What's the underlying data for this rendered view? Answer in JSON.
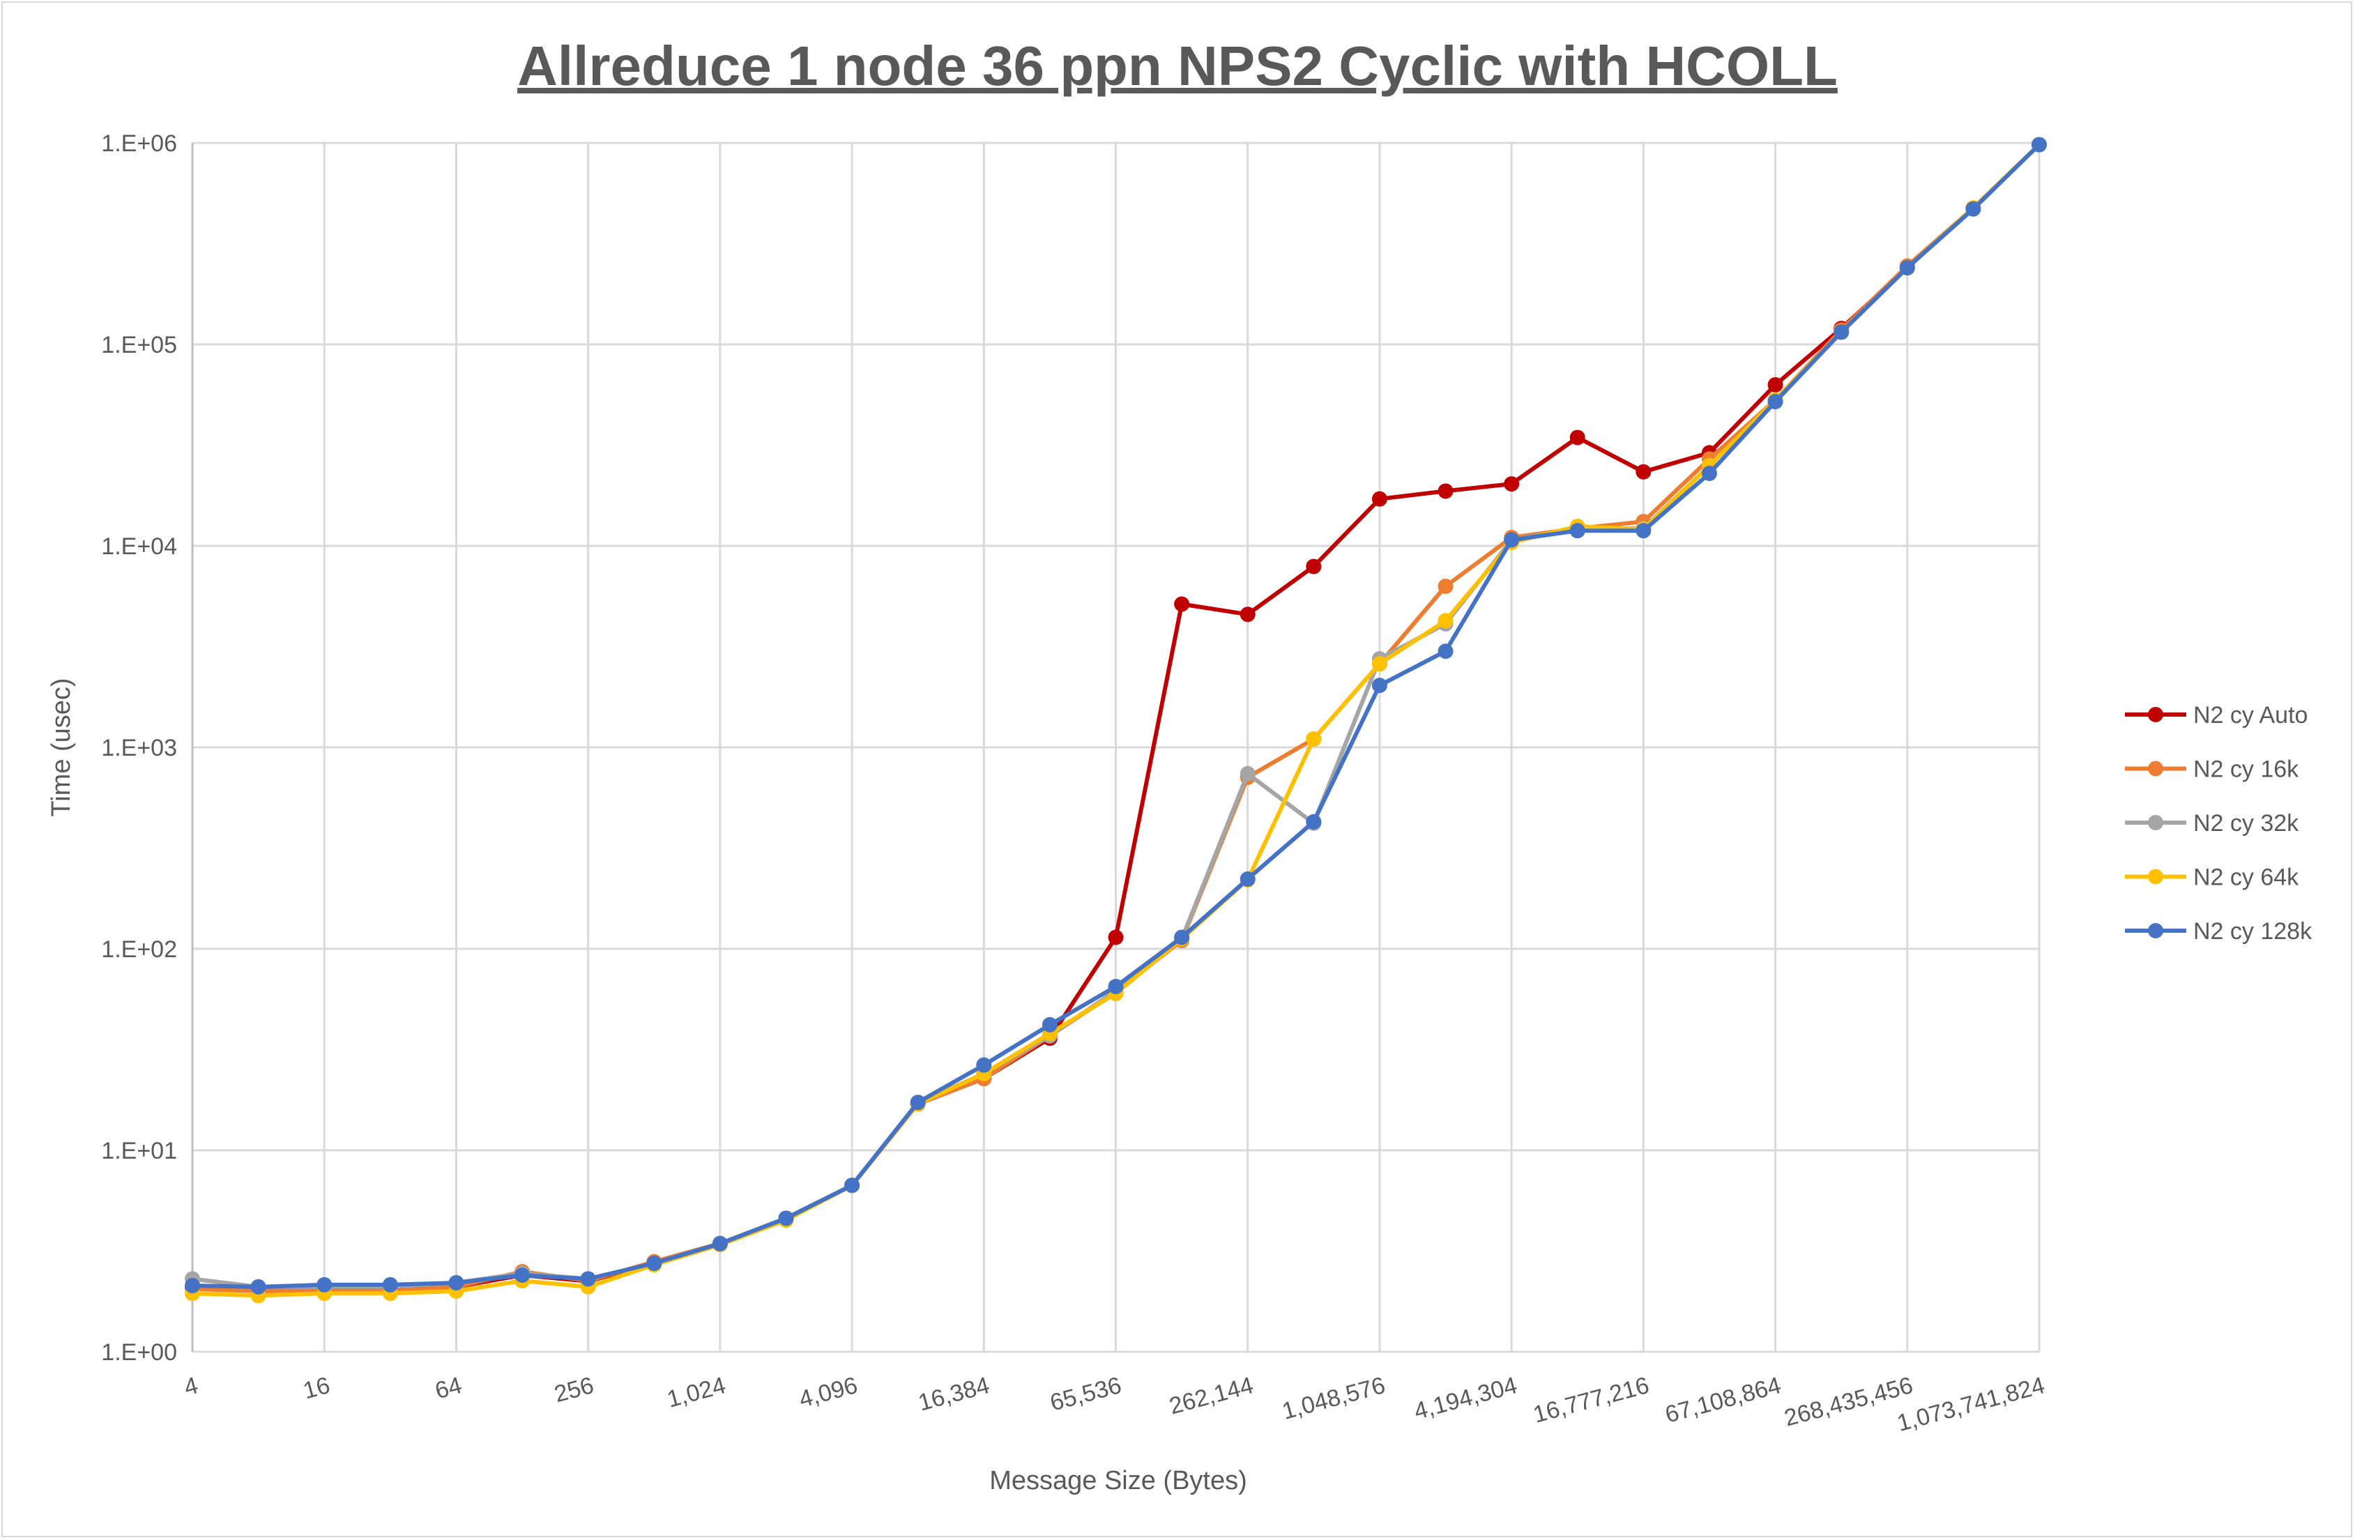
{
  "chart_data": {
    "type": "line",
    "title": "Allreduce 1 node 36 ppn NPS2 Cyclic with HCOLL",
    "xlabel": "Message Size (Bytes)",
    "ylabel": "Time (usec)",
    "x_scale": "log2",
    "y_scale": "log10",
    "ylim": [
      1,
      1000000
    ],
    "grid": true,
    "legend_position": "right",
    "x": [
      4,
      8,
      16,
      32,
      64,
      128,
      256,
      512,
      1024,
      2048,
      4096,
      8192,
      16384,
      32768,
      65536,
      131072,
      262144,
      524288,
      1048576,
      2097152,
      4194304,
      8388608,
      16777216,
      33554432,
      67108864,
      134217728,
      268435456,
      536870912,
      1073741824
    ],
    "x_tick_labels": [
      "4",
      "16",
      "64",
      "256",
      "1,024",
      "4,096",
      "16,384",
      "65,536",
      "262,144",
      "1,048,576",
      "4,194,304",
      "16,777,216",
      "67,108,864",
      "268,435,456",
      "1,073,741,824"
    ],
    "y_tick_labels": [
      "1.E+00",
      "1.E+01",
      "1.E+02",
      "1.E+03",
      "1.E+04",
      "1.E+05",
      "1.E+06"
    ],
    "series": [
      {
        "name": "N2 cy Auto",
        "color": "#C00000",
        "values": [
          2.09,
          2.0,
          2.05,
          2.05,
          2.1,
          2.4,
          2.24,
          2.75,
          3.44,
          4.53,
          6.7,
          17.0,
          22.7,
          36,
          114,
          5140,
          4570,
          7900,
          17100,
          18700,
          20300,
          34500,
          23300,
          29000,
          63000,
          120000,
          240000,
          475000,
          980000
        ]
      },
      {
        "name": "N2 cy 16k",
        "color": "#ED7D31",
        "values": [
          2.05,
          2.0,
          2.0,
          2.0,
          2.1,
          2.5,
          2.25,
          2.8,
          3.45,
          4.6,
          6.7,
          17.0,
          22.7,
          37,
          61,
          110,
          710,
          1100,
          2600,
          6300,
          11000,
          12200,
          13200,
          27000,
          53000,
          118000,
          245000,
          475000,
          980000
        ]
      },
      {
        "name": "N2 cy 32k",
        "color": "#A5A5A5",
        "values": [
          2.3,
          2.1,
          2.1,
          2.1,
          2.2,
          2.45,
          2.3,
          2.75,
          3.45,
          4.6,
          6.7,
          17.2,
          24,
          37,
          62,
          112,
          740,
          420,
          2750,
          4100,
          10700,
          12200,
          12200,
          25000,
          53000,
          115000,
          240000,
          475000,
          980000
        ]
      },
      {
        "name": "N2 cy 64k",
        "color": "#FFC000",
        "values": [
          1.95,
          1.9,
          1.95,
          1.95,
          2.0,
          2.25,
          2.1,
          2.7,
          3.4,
          4.5,
          6.7,
          17.0,
          24,
          38,
          60,
          112,
          220,
          1100,
          2600,
          4250,
          10400,
          12500,
          12100,
          25000,
          53000,
          115000,
          240000,
          475000,
          980000
        ]
      },
      {
        "name": "N2 cy 128k",
        "color": "#4472C4",
        "values": [
          2.13,
          2.1,
          2.15,
          2.15,
          2.2,
          2.4,
          2.3,
          2.75,
          3.44,
          4.6,
          6.7,
          17.3,
          26.5,
          42,
          65,
          114,
          222,
          427,
          2030,
          3000,
          10700,
          11900,
          11900,
          22900,
          52000,
          115000,
          240000,
          470000,
          980000
        ]
      }
    ]
  }
}
